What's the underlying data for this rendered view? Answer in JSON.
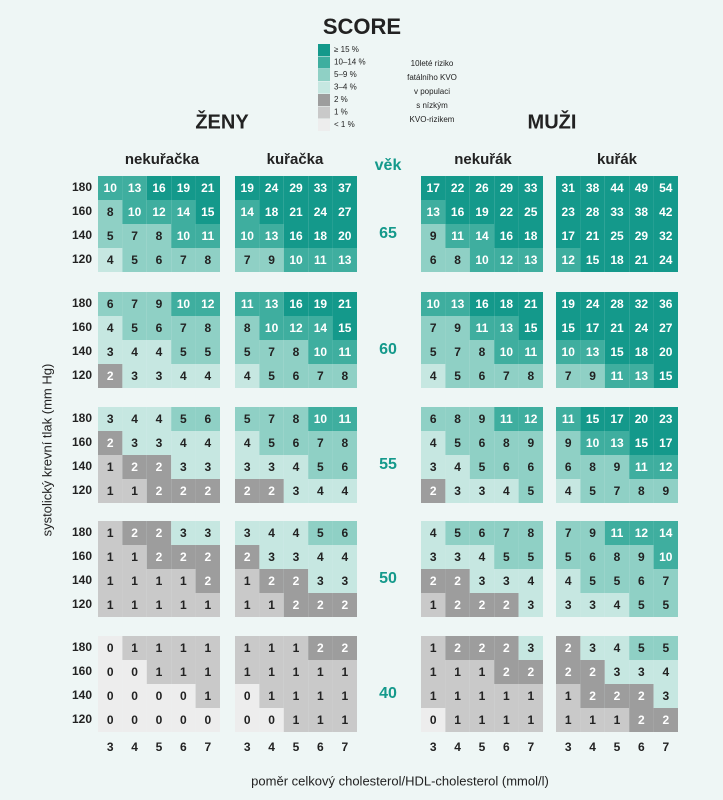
{
  "title": "SCORE",
  "legend": {
    "items": [
      {
        "label": "≥ 15 %",
        "color": "#14998b"
      },
      {
        "label": "10–14 %",
        "color": "#3fae9f"
      },
      {
        "label": "5–9 %",
        "color": "#8fd0c5"
      },
      {
        "label": "3–4 %",
        "color": "#c6e7e1"
      },
      {
        "label": "2 %",
        "color": "#9d9d9d"
      },
      {
        "label": "1 %",
        "color": "#c9c9c9"
      },
      {
        "label": "< 1 %",
        "color": "#ededed"
      }
    ],
    "note": [
      "10leté riziko",
      "fatálního KVO",
      "v populaci",
      "s nízkým",
      "KVO-rizikem"
    ]
  },
  "sexes": [
    "ŽENY",
    "MUŽI"
  ],
  "groups": [
    "nekuřačka",
    "kuřačka",
    "nekuřák",
    "kuřák"
  ],
  "age_header": "věk",
  "sbp": [
    180,
    160,
    140,
    120
  ],
  "cholesterol": [
    3,
    4,
    5,
    6,
    7
  ],
  "y_title": "systolický krevní tlak (mm Hg)",
  "x_title": "poměr celkový cholesterol/HDL-cholesterol (mmol/l)",
  "blocks": [
    {
      "age": 65,
      "groups": [
        [
          [
            10,
            13,
            16,
            19,
            21
          ],
          [
            8,
            10,
            12,
            14,
            15
          ],
          [
            5,
            7,
            8,
            10,
            11
          ],
          [
            4,
            5,
            6,
            7,
            8
          ]
        ],
        [
          [
            19,
            24,
            29,
            33,
            37
          ],
          [
            14,
            18,
            21,
            24,
            27
          ],
          [
            10,
            13,
            16,
            18,
            20
          ],
          [
            7,
            9,
            10,
            11,
            13
          ]
        ],
        [
          [
            17,
            22,
            26,
            29,
            33
          ],
          [
            13,
            16,
            19,
            22,
            25
          ],
          [
            9,
            11,
            14,
            16,
            18
          ],
          [
            6,
            8,
            10,
            12,
            13
          ]
        ],
        [
          [
            31,
            38,
            44,
            49,
            54
          ],
          [
            23,
            28,
            33,
            38,
            42
          ],
          [
            17,
            21,
            25,
            29,
            32
          ],
          [
            12,
            15,
            18,
            21,
            24
          ]
        ]
      ]
    },
    {
      "age": 60,
      "groups": [
        [
          [
            6,
            7,
            9,
            10,
            12
          ],
          [
            4,
            5,
            6,
            7,
            8
          ],
          [
            3,
            4,
            4,
            5,
            5
          ],
          [
            2,
            3,
            3,
            4,
            4
          ]
        ],
        [
          [
            11,
            13,
            16,
            19,
            21
          ],
          [
            8,
            10,
            12,
            14,
            15
          ],
          [
            5,
            7,
            8,
            10,
            11
          ],
          [
            4,
            5,
            6,
            7,
            8
          ]
        ],
        [
          [
            10,
            13,
            16,
            18,
            21
          ],
          [
            7,
            9,
            11,
            13,
            15
          ],
          [
            5,
            7,
            8,
            10,
            11
          ],
          [
            4,
            5,
            6,
            7,
            8
          ]
        ],
        [
          [
            19,
            24,
            28,
            32,
            36
          ],
          [
            15,
            17,
            21,
            24,
            27
          ],
          [
            10,
            13,
            15,
            18,
            20
          ],
          [
            7,
            9,
            11,
            13,
            15
          ]
        ]
      ]
    },
    {
      "age": 55,
      "groups": [
        [
          [
            3,
            4,
            4,
            5,
            6
          ],
          [
            2,
            3,
            3,
            4,
            4
          ],
          [
            1,
            2,
            2,
            3,
            3
          ],
          [
            1,
            1,
            2,
            2,
            2
          ]
        ],
        [
          [
            5,
            7,
            8,
            10,
            11
          ],
          [
            4,
            5,
            6,
            7,
            8
          ],
          [
            3,
            3,
            4,
            5,
            6
          ],
          [
            2,
            2,
            3,
            4,
            4
          ]
        ],
        [
          [
            6,
            8,
            9,
            11,
            12
          ],
          [
            4,
            5,
            6,
            8,
            9
          ],
          [
            3,
            4,
            5,
            6,
            6
          ],
          [
            2,
            3,
            3,
            4,
            5
          ]
        ],
        [
          [
            11,
            15,
            17,
            20,
            23
          ],
          [
            9,
            10,
            13,
            15,
            17
          ],
          [
            6,
            8,
            9,
            11,
            12
          ],
          [
            4,
            5,
            7,
            8,
            9
          ]
        ]
      ]
    },
    {
      "age": 50,
      "groups": [
        [
          [
            1,
            2,
            2,
            3,
            3
          ],
          [
            1,
            1,
            2,
            2,
            2
          ],
          [
            1,
            1,
            1,
            1,
            2
          ],
          [
            1,
            1,
            1,
            1,
            1
          ]
        ],
        [
          [
            3,
            4,
            4,
            5,
            6
          ],
          [
            2,
            3,
            3,
            4,
            4
          ],
          [
            1,
            2,
            2,
            3,
            3
          ],
          [
            1,
            1,
            2,
            2,
            2
          ]
        ],
        [
          [
            4,
            5,
            6,
            7,
            8
          ],
          [
            3,
            3,
            4,
            5,
            5
          ],
          [
            2,
            2,
            3,
            3,
            4
          ],
          [
            1,
            2,
            2,
            2,
            3
          ]
        ],
        [
          [
            7,
            9,
            11,
            12,
            14
          ],
          [
            5,
            6,
            8,
            9,
            10
          ],
          [
            4,
            5,
            5,
            6,
            7
          ],
          [
            3,
            3,
            4,
            5,
            5
          ]
        ]
      ]
    },
    {
      "age": 40,
      "groups": [
        [
          [
            0,
            1,
            1,
            1,
            1
          ],
          [
            0,
            0,
            1,
            1,
            1
          ],
          [
            0,
            0,
            0,
            0,
            1
          ],
          [
            0,
            0,
            0,
            0,
            0
          ]
        ],
        [
          [
            1,
            1,
            1,
            2,
            2
          ],
          [
            1,
            1,
            1,
            1,
            1
          ],
          [
            0,
            1,
            1,
            1,
            1
          ],
          [
            0,
            0,
            1,
            1,
            1
          ]
        ],
        [
          [
            1,
            2,
            2,
            2,
            3
          ],
          [
            1,
            1,
            1,
            2,
            2
          ],
          [
            1,
            1,
            1,
            1,
            1
          ],
          [
            0,
            1,
            1,
            1,
            1
          ]
        ],
        [
          [
            2,
            3,
            4,
            5,
            5
          ],
          [
            2,
            2,
            3,
            3,
            4
          ],
          [
            1,
            2,
            2,
            2,
            3
          ],
          [
            1,
            1,
            1,
            2,
            2
          ]
        ]
      ]
    }
  ]
}
